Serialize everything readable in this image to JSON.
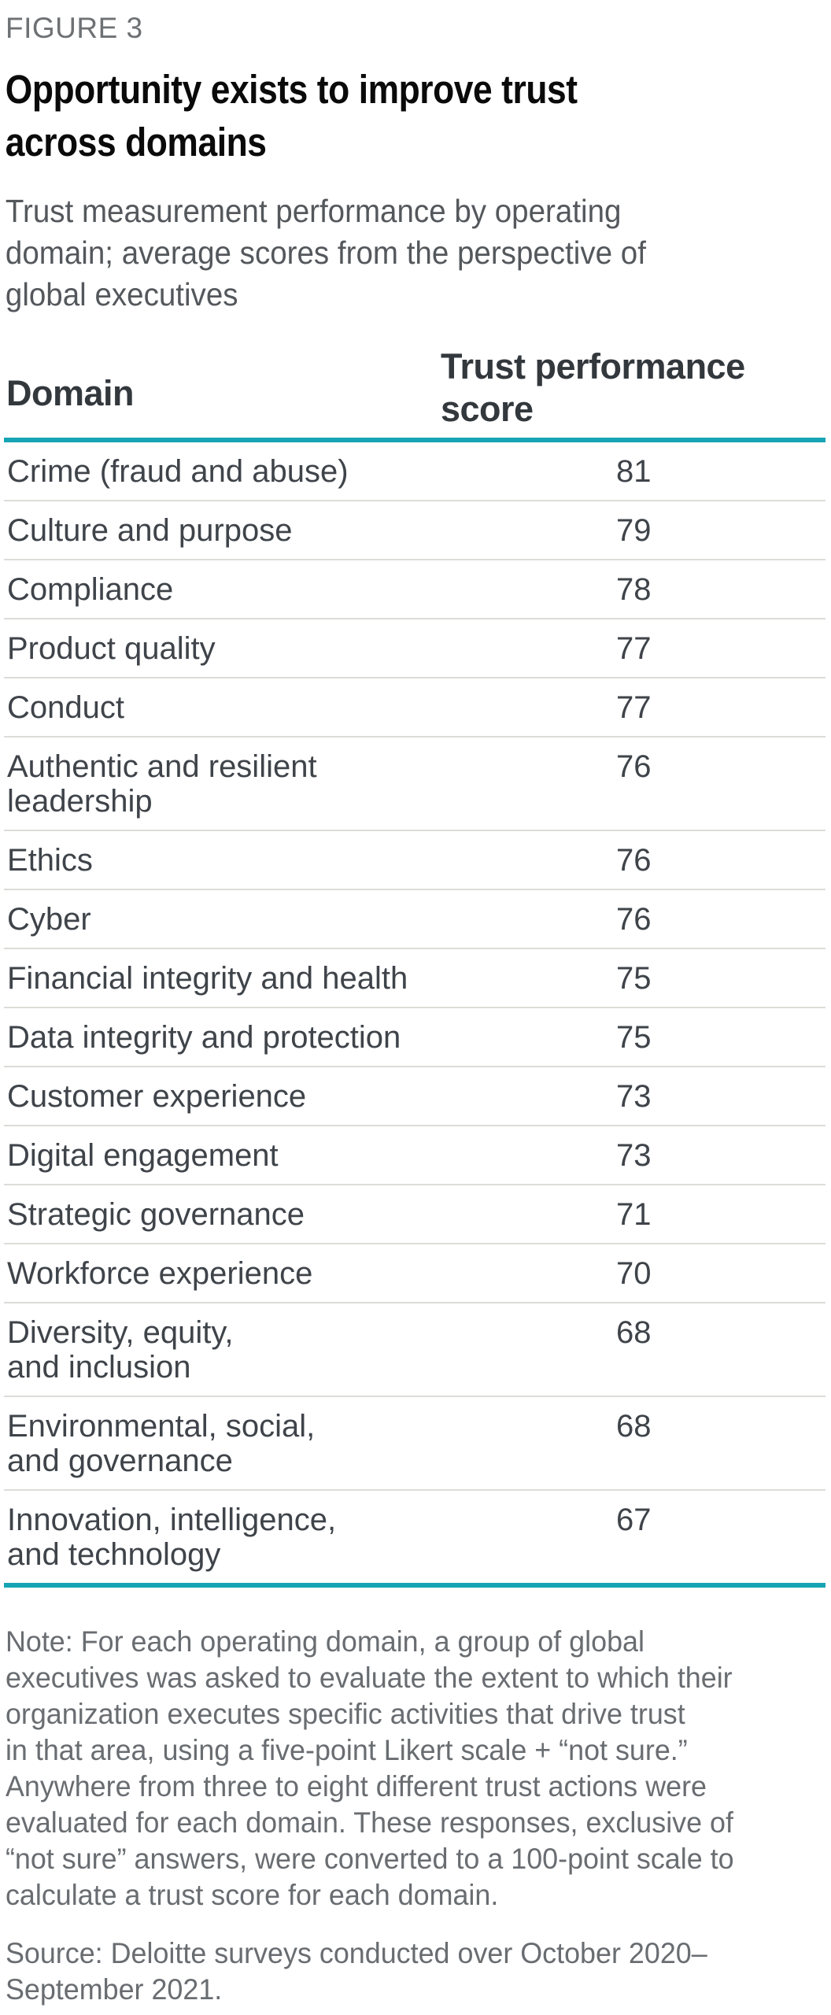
{
  "figure": {
    "label": "FIGURE 3",
    "title": "Opportunity exists to improve trust\nacross domains",
    "subtitle": "Trust measurement performance by operating\ndomain; average scores from the perspective of\nglobal executives"
  },
  "table": {
    "columns": {
      "domain": "Domain",
      "score": "Trust performance\nscore"
    },
    "rows": [
      {
        "domain": "Crime (fraud and abuse)",
        "score": "81"
      },
      {
        "domain": "Culture and purpose",
        "score": "79"
      },
      {
        "domain": "Compliance",
        "score": "78"
      },
      {
        "domain": "Product quality",
        "score": "77"
      },
      {
        "domain": "Conduct",
        "score": "77"
      },
      {
        "domain": "Authentic and resilient\nleadership",
        "score": "76"
      },
      {
        "domain": "Ethics",
        "score": "76"
      },
      {
        "domain": "Cyber",
        "score": "76"
      },
      {
        "domain": "Financial integrity and health",
        "score": "75"
      },
      {
        "domain": "Data integrity and protection",
        "score": "75"
      },
      {
        "domain": "Customer experience",
        "score": "73"
      },
      {
        "domain": "Digital engagement",
        "score": "73"
      },
      {
        "domain": "Strategic governance",
        "score": "71"
      },
      {
        "domain": "Workforce experience",
        "score": "70"
      },
      {
        "domain": "Diversity, equity,\nand inclusion",
        "score": "68"
      },
      {
        "domain": "Environmental, social,\nand governance",
        "score": "68"
      },
      {
        "domain": "Innovation, intelligence,\nand technology",
        "score": "67"
      }
    ]
  },
  "note": "Note: For each operating domain, a group of global\nexecutives was asked to evaluate the extent to which their\norganization executes specific activities that drive trust\nin that area, using a five-point Likert scale + “not sure.”\nAnywhere from three to eight different trust actions were\nevaluated for each domain. These responses, exclusive of\n“not sure” answers, were converted to a 100-point scale to\ncalculate a trust score for each domain.",
  "source": "Source: Deloitte surveys conducted over October 2020–\nSeptember 2021.",
  "colors": {
    "accent_teal": "#17a4b4",
    "separator": "#dcdcd8",
    "label_gray": "#6e7174",
    "title_black": "#0a0a0a",
    "subtitle_gray": "#54585c",
    "header_text": "#33383d",
    "row_text": "#3f444a",
    "note_gray": "#696d71",
    "page_bg": "#ffffff"
  },
  "chart_data": {
    "type": "table",
    "title": "Opportunity exists to improve trust across domains",
    "subtitle": "Trust measurement performance by operating domain; average scores from the perspective of global executives",
    "columns": [
      "Domain",
      "Trust performance score"
    ],
    "categories": [
      "Crime (fraud and abuse)",
      "Culture and purpose",
      "Compliance",
      "Product quality",
      "Conduct",
      "Authentic and resilient leadership",
      "Ethics",
      "Cyber",
      "Financial integrity and health",
      "Data integrity and protection",
      "Customer experience",
      "Digital engagement",
      "Strategic governance",
      "Workforce experience",
      "Diversity, equity, and inclusion",
      "Environmental, social, and governance",
      "Innovation, intelligence, and technology"
    ],
    "values": [
      81,
      79,
      78,
      77,
      77,
      76,
      76,
      76,
      75,
      75,
      73,
      73,
      71,
      70,
      68,
      68,
      67
    ],
    "value_range": [
      0,
      100
    ],
    "note": "Scores converted to a 100-point scale; responses exclusive of “not sure” answers.",
    "source": "Deloitte surveys conducted over October 2020–September 2021."
  }
}
